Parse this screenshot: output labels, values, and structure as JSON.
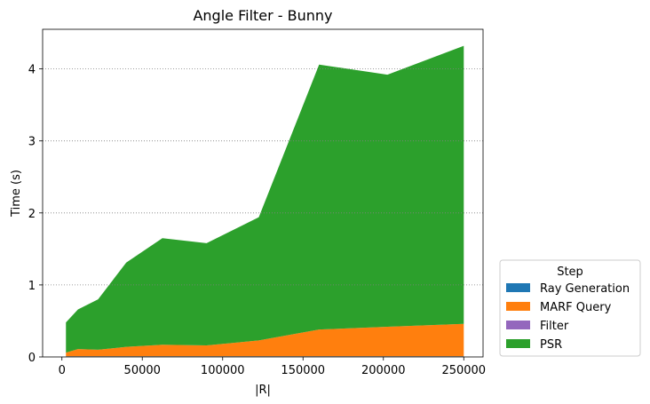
{
  "chart_data": {
    "type": "area",
    "stacked": true,
    "title": "Angle Filter - Bunny",
    "xlabel": "|R|",
    "ylabel": "Time (s)",
    "xlim": [
      -12000,
      262000
    ],
    "ylim": [
      0,
      4.55
    ],
    "xticks": [
      0,
      50000,
      100000,
      150000,
      200000,
      250000
    ],
    "yticks": [
      0,
      1,
      2,
      3,
      4
    ],
    "grid": {
      "y": true,
      "x": false,
      "style": "dotted"
    },
    "legend": {
      "title": "Step",
      "placement": "outside-lower-right"
    },
    "x": [
      2500,
      10000,
      22500,
      40000,
      62500,
      90000,
      122500,
      160000,
      202500,
      250000
    ],
    "series": [
      {
        "name": "Ray Generation",
        "color": "#1f77b4",
        "values": [
          0.01,
          0.01,
          0.01,
          0.01,
          0.01,
          0.01,
          0.01,
          0.01,
          0.01,
          0.01
        ]
      },
      {
        "name": "MARF Query",
        "color": "#ff7f0e",
        "values": [
          0.05,
          0.1,
          0.09,
          0.13,
          0.16,
          0.15,
          0.22,
          0.37,
          0.41,
          0.45
        ]
      },
      {
        "name": "Filter",
        "color": "#9467bd",
        "values": [
          0.0,
          0.0,
          0.0,
          0.0,
          0.0,
          0.0,
          0.0,
          0.0,
          0.0,
          0.0
        ]
      },
      {
        "name": "PSR",
        "color": "#2ca02c",
        "values": [
          0.42,
          0.55,
          0.7,
          1.17,
          1.48,
          1.42,
          1.71,
          3.68,
          3.5,
          3.86
        ]
      }
    ]
  }
}
